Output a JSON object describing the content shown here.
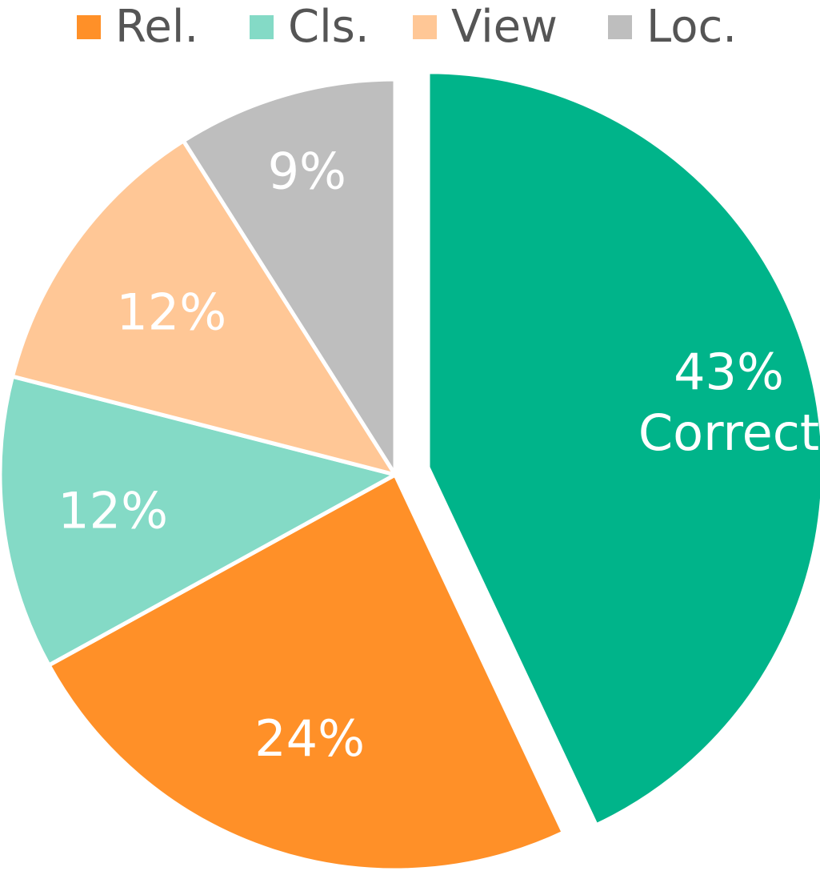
{
  "chart_data": {
    "type": "pie",
    "title": "",
    "legend": {
      "placement": "top",
      "entries": [
        {
          "label": "Rel.",
          "color": "#FF9028"
        },
        {
          "label": "Cls.",
          "color": "#84DAC6"
        },
        {
          "label": "View",
          "color": "#FFC796"
        },
        {
          "label": "Loc.",
          "color": "#BEBEBE"
        }
      ]
    },
    "slices": [
      {
        "value": 43,
        "label": "43%",
        "sublabel": "Correct",
        "color": "#00B48A",
        "exploded": true
      },
      {
        "value": 24,
        "label": "24%",
        "sublabel": "",
        "color": "#FF9028",
        "exploded": false
      },
      {
        "value": 12,
        "label": "12%",
        "sublabel": "",
        "color": "#84DAC6",
        "exploded": false
      },
      {
        "value": 12,
        "label": "12%",
        "sublabel": "",
        "color": "#FFC796",
        "exploded": false
      },
      {
        "value": 9,
        "label": "9%",
        "sublabel": "",
        "color": "#BEBEBE",
        "exploded": false
      }
    ]
  }
}
